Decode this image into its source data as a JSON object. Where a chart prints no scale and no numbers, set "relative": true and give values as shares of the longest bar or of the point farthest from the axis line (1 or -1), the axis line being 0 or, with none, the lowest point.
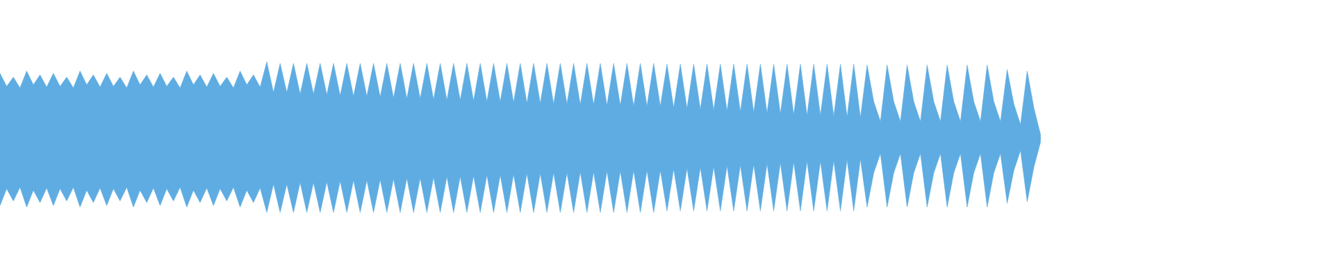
{
  "chart_data": {
    "type": "area",
    "relative": true,
    "categories": [
      null,
      null,
      null,
      null,
      null,
      null,
      null,
      null,
      null,
      null,
      null,
      null,
      null,
      null,
      null,
      null,
      null,
      null,
      null,
      null,
      null,
      null,
      null,
      null,
      null,
      null,
      null,
      null,
      null,
      null,
      null,
      null,
      null,
      null,
      null,
      null,
      null,
      null,
      null,
      null,
      null,
      null,
      null,
      null,
      null,
      null,
      null,
      null,
      null,
      null,
      null,
      null,
      null,
      null,
      null,
      null,
      null,
      null,
      null,
      null,
      null,
      null,
      null,
      null,
      null,
      null,
      null,
      null,
      null,
      null,
      null,
      null,
      null,
      null,
      null,
      null,
      null,
      null,
      null,
      null,
      null,
      null,
      null,
      null,
      null,
      null,
      null,
      null,
      null,
      null,
      null,
      null,
      null,
      null,
      null,
      null,
      null,
      null,
      null,
      null,
      null,
      null,
      null,
      null,
      null,
      null,
      null,
      null,
      null,
      null,
      null,
      null,
      null,
      null,
      null,
      null,
      null,
      null,
      null,
      null,
      null,
      null,
      null,
      null,
      null,
      null,
      null,
      null,
      null,
      null,
      null,
      null,
      null,
      null,
      null,
      null,
      null,
      null,
      null,
      null,
      null,
      null,
      null,
      null,
      null,
      null,
      null,
      null,
      null,
      null,
      null,
      null,
      null,
      null,
      null,
      null,
      null,
      null,
      null,
      null,
      null,
      null,
      null,
      null,
      null,
      null,
      null,
      null,
      null,
      null,
      null,
      null,
      null,
      null,
      null,
      null,
      null,
      null,
      null,
      null,
      null,
      null,
      null,
      null,
      null,
      null,
      null,
      null,
      null,
      null,
      null,
      null,
      null,
      null,
      null,
      null,
      null,
      null,
      null,
      null
    ],
    "series": [
      {
        "color": "#5eace2",
        "values": [
          0.85,
          0.68,
          0.8,
          0.66,
          0.88,
          0.7,
          0.83,
          0.67,
          0.85,
          0.68,
          0.8,
          0.66,
          0.88,
          0.7,
          0.83,
          0.67,
          0.85,
          0.68,
          0.8,
          0.66,
          0.88,
          0.7,
          0.83,
          0.67,
          0.85,
          0.68,
          0.8,
          0.66,
          0.88,
          0.7,
          0.83,
          0.67,
          0.85,
          0.68,
          0.8,
          0.66,
          0.88,
          0.7,
          0.83,
          0.67,
          1,
          0.6,
          0.98,
          0.6,
          0.98,
          0.58,
          0.98,
          0.58,
          0.98,
          0.57,
          0.98,
          0.56,
          0.98,
          0.55,
          0.98,
          0.55,
          0.98,
          0.54,
          0.98,
          0.53,
          0.98,
          0.52,
          0.98,
          0.52,
          0.98,
          0.51,
          0.98,
          0.5,
          0.98,
          0.5,
          0.98,
          0.49,
          0.98,
          0.48,
          0.98,
          0.48,
          0.98,
          0.47,
          0.98,
          0.46,
          0.98,
          0.46,
          0.98,
          0.45,
          0.98,
          0.45,
          0.98,
          0.44,
          0.98,
          0.44,
          0.98,
          0.43,
          0.98,
          0.43,
          0.98,
          0.42,
          0.98,
          0.42,
          0.98,
          0.42,
          0.97,
          0.4,
          0.97,
          0.39,
          0.97,
          0.38,
          0.97,
          0.37,
          0.97,
          0.36,
          0.97,
          0.35,
          0.97,
          0.34,
          0.97,
          0.33,
          0.97,
          0.32,
          0.97,
          0.31,
          0.97,
          0.3,
          0.97,
          0.3,
          0.97,
          0.29,
          0.97,
          0.28,
          0.97,
          0.27,
          0.96,
          0.48,
          0.22,
          0.96,
          0.48,
          0.22,
          0.96,
          0.48,
          0.22,
          0.96,
          0.48,
          0.22,
          0.96,
          0.48,
          0.22,
          0.96,
          0.48,
          0.22,
          0.96,
          0.48,
          0.22,
          0.9,
          0.45,
          0.18,
          0.88,
          0.4,
          0.05,
          null,
          null,
          null,
          null,
          null,
          null,
          null,
          null,
          null,
          null,
          null,
          null,
          null,
          null,
          null,
          null,
          null,
          null,
          null,
          null,
          null,
          null,
          null,
          null,
          null,
          null,
          null,
          null,
          null,
          null,
          null,
          null,
          null,
          null,
          null,
          null,
          null,
          null,
          null,
          null,
          null,
          null,
          null
        ]
      },
      {
        "color": "#5eace2",
        "values": [
          -0.88,
          -0.66,
          -0.82,
          -0.64,
          -0.9,
          -0.68,
          -0.84,
          -0.65,
          -0.88,
          -0.66,
          -0.82,
          -0.64,
          -0.9,
          -0.68,
          -0.84,
          -0.65,
          -0.88,
          -0.66,
          -0.82,
          -0.64,
          -0.9,
          -0.68,
          -0.84,
          -0.65,
          -0.88,
          -0.66,
          -0.82,
          -0.64,
          -0.9,
          -0.68,
          -0.84,
          -0.65,
          -0.88,
          -0.66,
          -0.82,
          -0.64,
          -0.9,
          -0.68,
          -0.84,
          -0.65,
          -0.97,
          -0.6,
          -0.97,
          -0.6,
          -0.97,
          -0.58,
          -0.97,
          -0.58,
          -0.97,
          -0.57,
          -0.97,
          -0.56,
          -0.97,
          -0.55,
          -0.97,
          -0.55,
          -0.97,
          -0.54,
          -0.97,
          -0.53,
          -0.97,
          -0.52,
          -0.97,
          -0.52,
          -0.97,
          -0.51,
          -0.97,
          -0.5,
          -0.97,
          -0.5,
          -0.97,
          -0.49,
          -0.97,
          -0.48,
          -0.97,
          -0.48,
          -0.97,
          -0.47,
          -0.97,
          -0.46,
          -0.97,
          -0.46,
          -0.97,
          -0.45,
          -0.97,
          -0.45,
          -0.97,
          -0.44,
          -0.97,
          -0.44,
          -0.97,
          -0.43,
          -0.97,
          -0.43,
          -0.97,
          -0.42,
          -0.97,
          -0.42,
          -0.97,
          -0.42,
          -0.95,
          -0.4,
          -0.95,
          -0.39,
          -0.95,
          -0.38,
          -0.95,
          -0.37,
          -0.95,
          -0.36,
          -0.95,
          -0.35,
          -0.95,
          -0.34,
          -0.95,
          -0.33,
          -0.95,
          -0.32,
          -0.95,
          -0.31,
          -0.95,
          -0.3,
          -0.95,
          -0.3,
          -0.95,
          -0.29,
          -0.95,
          -0.28,
          -0.95,
          -0.27,
          -0.9,
          -0.45,
          -0.2,
          -0.9,
          -0.45,
          -0.2,
          -0.9,
          -0.45,
          -0.2,
          -0.9,
          -0.45,
          -0.2,
          -0.9,
          -0.45,
          -0.2,
          -0.9,
          -0.45,
          -0.2,
          -0.9,
          -0.45,
          -0.2,
          -0.85,
          -0.42,
          -0.16,
          -0.83,
          -0.38,
          -0.05,
          null,
          null,
          null,
          null,
          null,
          null,
          null,
          null,
          null,
          null,
          null,
          null,
          null,
          null,
          null,
          null,
          null,
          null,
          null,
          null,
          null,
          null,
          null,
          null,
          null,
          null,
          null,
          null,
          null,
          null,
          null,
          null,
          null,
          null,
          null,
          null,
          null,
          null,
          null,
          null,
          null,
          null,
          null
        ]
      }
    ]
  }
}
